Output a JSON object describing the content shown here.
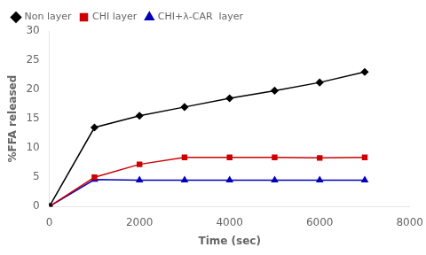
{
  "chart_data": {
    "type": "line",
    "x": [
      0,
      1000,
      2000,
      3000,
      4000,
      5000,
      6000,
      7000
    ],
    "series": [
      {
        "name": "Non layer",
        "color": "#000000",
        "marker": "diamond",
        "values": [
          0,
          13.5,
          15.5,
          17.0,
          18.5,
          19.8,
          21.2,
          23.0
        ]
      },
      {
        "name": "CHI layer",
        "color": "#cc0000",
        "marker": "square",
        "values": [
          0,
          5.0,
          7.2,
          8.4,
          8.4,
          8.4,
          8.3,
          8.4
        ]
      },
      {
        "name": "CHI+λ-CAR  layer",
        "color": "#0000bb",
        "marker": "triangle",
        "values": [
          0,
          4.6,
          4.5,
          4.5,
          4.5,
          4.5,
          4.5,
          4.5
        ]
      }
    ],
    "xlabel": "Time (sec)",
    "ylabel": "%FFA released",
    "xlim": [
      0,
      8000
    ],
    "ylim": [
      0,
      30
    ],
    "xticks": [
      0,
      2000,
      4000,
      6000,
      8000
    ],
    "yticks": [
      0,
      5,
      10,
      15,
      20,
      25,
      30
    ],
    "grid": false,
    "legend": "upper left"
  }
}
